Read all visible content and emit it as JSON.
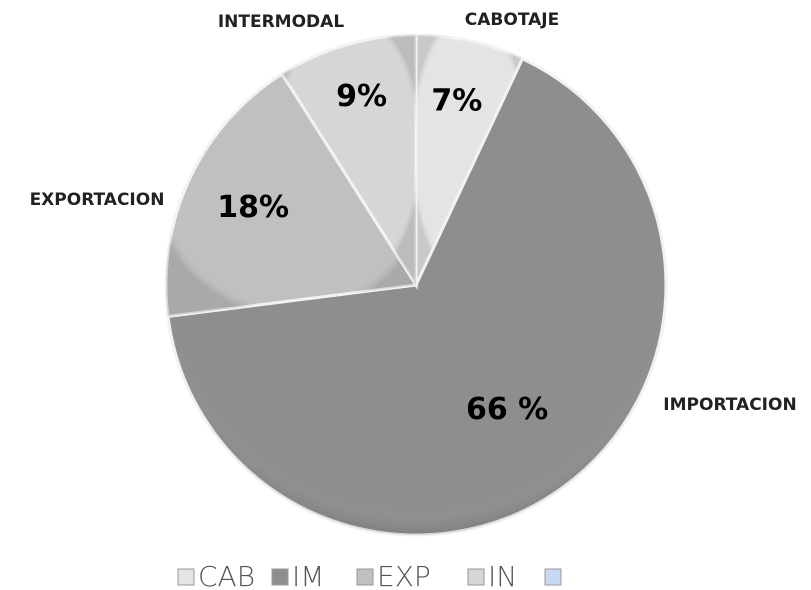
{
  "chart_data": {
    "type": "pie",
    "categories": [
      "CABOTAJE",
      "IMPORTACION",
      "EXPORTACION",
      "INTERMODAL"
    ],
    "values": [
      7,
      66,
      18,
      9
    ],
    "value_labels": [
      "7%",
      "66 %",
      "18%",
      "9%"
    ],
    "colors": [
      "#e4e4e4",
      "#8e8e8e",
      "#c0c0c0",
      "#d6d6d6"
    ],
    "legend": [
      "CAB",
      "IM",
      "EXP",
      "IN",
      null
    ],
    "legend_colors": [
      "#e4e4e4",
      "#8e8e8e",
      "#c0c0c0",
      "#d6d6d6",
      "#c6d9f1"
    ]
  }
}
